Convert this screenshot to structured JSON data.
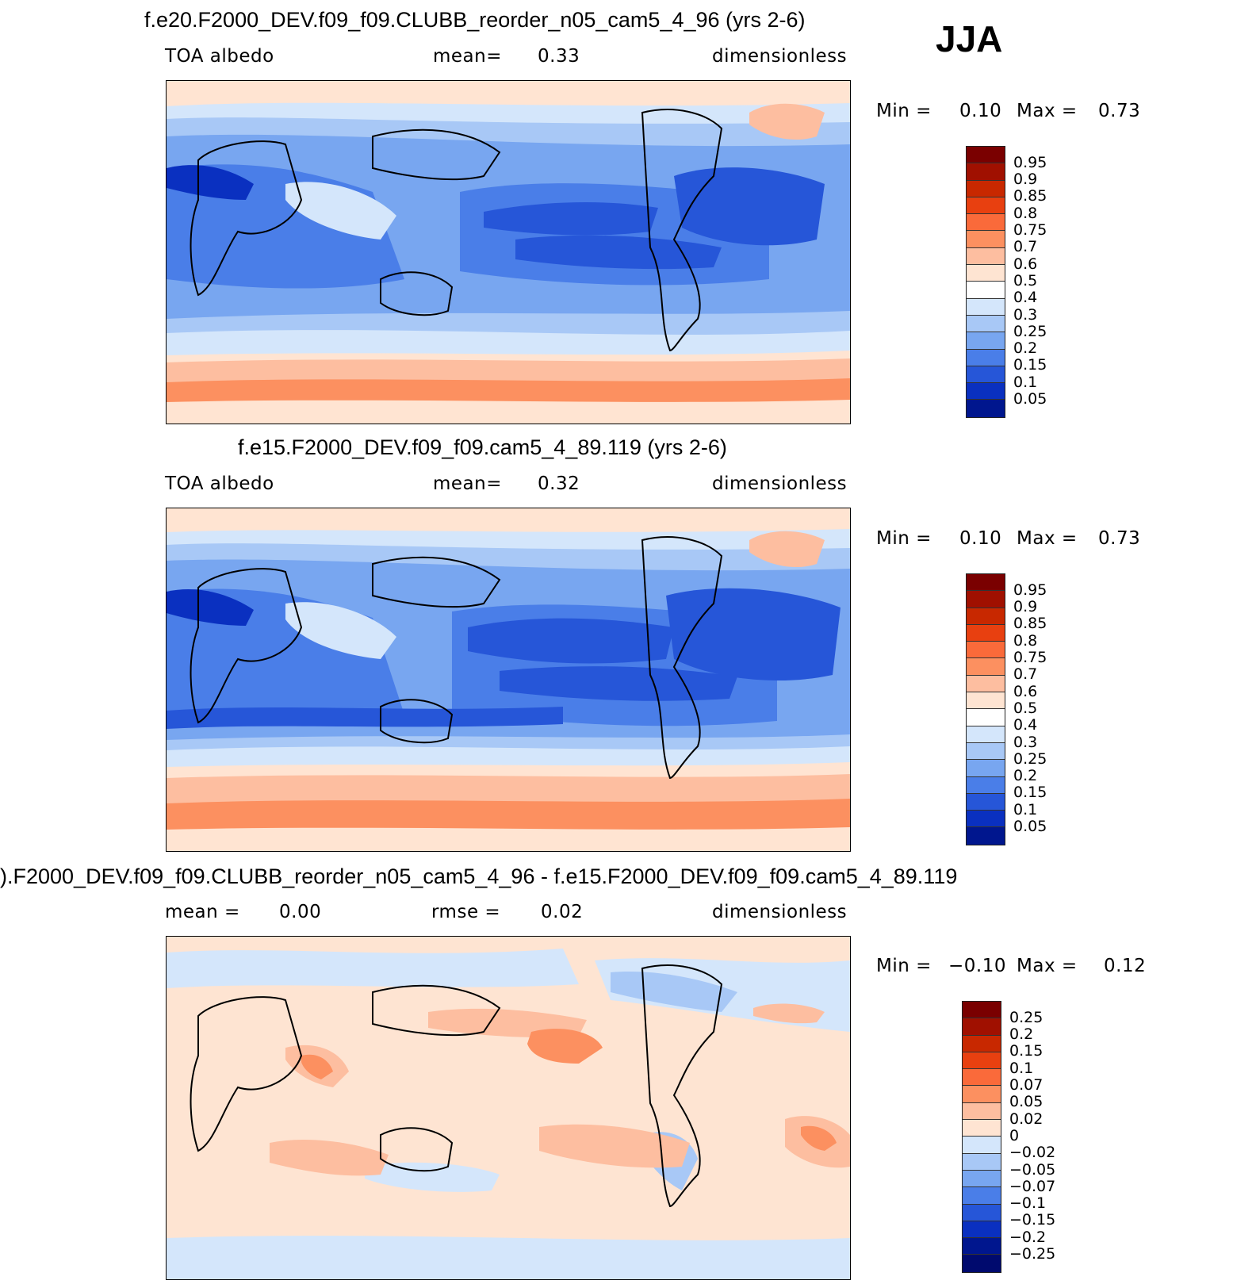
{
  "season": "JJA",
  "panels": [
    {
      "title": "f.e20.F2000_DEV.f09_f09.CLUBB_reorder_n05_cam5_4_96 (yrs 2-6)",
      "left_label": "TOA  albedo",
      "center_label": "mean=",
      "center_value": "0.33",
      "right_label": "dimensionless",
      "min_label": "Min  =",
      "min_value": "0.10",
      "max_label": "Max  =",
      "max_value": "0.73"
    },
    {
      "title": "f.e15.F2000_DEV.f09_f09.cam5_4_89.119 (yrs 2-6)",
      "left_label": "TOA  albedo",
      "center_label": "mean=",
      "center_value": "0.32",
      "right_label": "dimensionless",
      "min_label": "Min  =",
      "min_value": "0.10",
      "max_label": "Max  =",
      "max_value": "0.73"
    },
    {
      "title": ").F2000_DEV.f09_f09.CLUBB_reorder_n05_cam5_4_96 - f.e15.F2000_DEV.f09_f09.cam5_4_89.119",
      "left_label": "mean  =",
      "left_value": "0.00",
      "center_label": "rmse  =",
      "center_value": "0.02",
      "right_label": "dimensionless",
      "min_label": "Min  =",
      "min_value": "−0.10",
      "max_label": "Max  =",
      "max_value": "0.12"
    }
  ],
  "colorbar_abs": {
    "labels": [
      "0.95",
      "0.9",
      "0.85",
      "0.8",
      "0.75",
      "0.7",
      "0.6",
      "0.5",
      "0.4",
      "0.3",
      "0.25",
      "0.2",
      "0.15",
      "0.1",
      "0.05"
    ],
    "colors": [
      "#7a0000",
      "#a01000",
      "#c82800",
      "#e84010",
      "#fa6a3a",
      "#fc9060",
      "#fdbea0",
      "#fee4d2",
      "#ffffff",
      "#d4e6fb",
      "#a8c8f6",
      "#78a6f0",
      "#4a7ee8",
      "#2656d8",
      "#0a30c0",
      "#00168e"
    ]
  },
  "colorbar_diff": {
    "labels": [
      "0.25",
      "0.2",
      "0.15",
      "0.1",
      "0.07",
      "0.05",
      "0.02",
      "0",
      "−0.02",
      "−0.05",
      "−0.07",
      "−0.1",
      "−0.15",
      "−0.2",
      "−0.25"
    ],
    "colors": [
      "#7a0000",
      "#a01000",
      "#c82800",
      "#e84010",
      "#fa6a3a",
      "#fc9060",
      "#fdbea0",
      "#fee4d2",
      "#d4e6fb",
      "#a8c8f6",
      "#78a6f0",
      "#4a7ee8",
      "#2656d8",
      "#0a30c0",
      "#00168e",
      "#000a6e"
    ]
  }
}
